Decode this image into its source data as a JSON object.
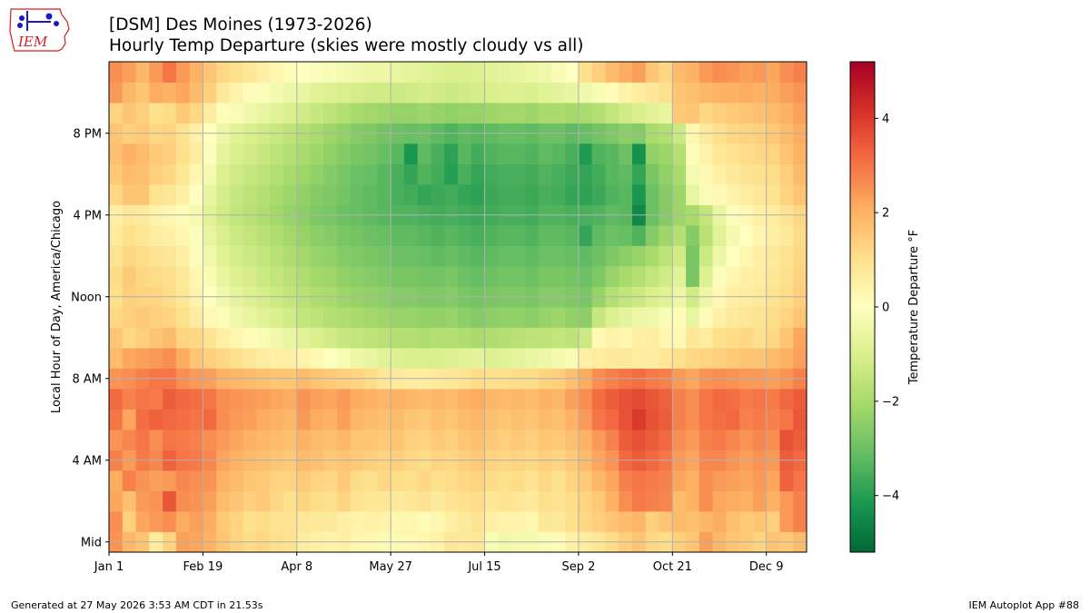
{
  "header": {
    "title_line1": "[DSM] Des Moines (1973-2026)",
    "title_line2": "Hourly Temp Departure (skies were mostly cloudy vs all)"
  },
  "logo": {
    "text": "IEM",
    "accent_color": "#cc2222",
    "icon_color": "#1a1acc"
  },
  "footer": {
    "left": "Generated at 27 May 2026 3:53 AM CDT in 21.53s",
    "right": "IEM Autoplot App #88"
  },
  "chart_data": {
    "type": "heatmap",
    "title": "[DSM] Des Moines (1973-2026)",
    "subtitle": "Hourly Temp Departure (skies were mostly cloudy vs all)",
    "xlabel": "",
    "ylabel": "Local Hour of Day, America/Chicago",
    "colorbar_label": "Temperature Departure °F",
    "colormap": "RdYlGn_r",
    "vmin": -5.2,
    "vmax": 5.2,
    "colorbar_ticks": [
      -4,
      -2,
      0,
      2,
      4
    ],
    "colorbar_tick_labels": [
      "−4",
      "−2",
      "0",
      "2",
      "4"
    ],
    "x_unit": "week of year",
    "x_bins": 52,
    "xlim": [
      0,
      52
    ],
    "x_ticks": [
      {
        "label": "Jan 1",
        "value": 0
      },
      {
        "label": "Feb 19",
        "value": 7
      },
      {
        "label": "Apr 8",
        "value": 14
      },
      {
        "label": "May 27",
        "value": 21
      },
      {
        "label": "Jul 15",
        "value": 28
      },
      {
        "label": "Sep 2",
        "value": 35
      },
      {
        "label": "Oct 21",
        "value": 42
      },
      {
        "label": "Dec 9",
        "value": 49
      }
    ],
    "y_unit": "hour of day",
    "ylim": [
      -0.5,
      23.5
    ],
    "y_ticks": [
      {
        "label": "Mid",
        "value": 0
      },
      {
        "label": "4 AM",
        "value": 4
      },
      {
        "label": "8 AM",
        "value": 8
      },
      {
        "label": "Noon",
        "value": 12
      },
      {
        "label": "4 PM",
        "value": 16
      },
      {
        "label": "8 PM",
        "value": 20
      }
    ],
    "grid": true,
    "values_by_hour": [
      [
        2.5,
        1.9,
        1.6,
        0.6,
        1.3,
        2.3,
        2.2,
        2.0,
        1.6,
        1.3,
        1.1,
        1.2,
        1.0,
        0.9,
        0.6,
        0.5,
        0.4,
        0.5,
        0.3,
        0.3,
        -0.2,
        -0.2,
        0.2,
        0.3,
        0.4,
        0.8,
        0.7,
        0.8,
        -0.2,
        -0.4,
        -0.3,
        -0.3,
        -0.2,
        0.1,
        0.5,
        0.6,
        0.8,
        1.1,
        1.4,
        1.6,
        1.2,
        1.1,
        1.4,
        1.6,
        2.3,
        1.9,
        1.6,
        1.5,
        1.3,
        1.6,
        1.5,
        1.8
      ],
      [
        2.6,
        1.4,
        2.2,
        2.4,
        2.6,
        2.1,
        2.3,
        2.1,
        1.5,
        1.3,
        1.0,
        1.1,
        0.9,
        0.9,
        0.8,
        0.7,
        0.7,
        0.5,
        0.4,
        0.5,
        0.4,
        0.3,
        0.3,
        0.1,
        0.3,
        0.5,
        0.7,
        0.9,
        0.5,
        0.4,
        0.4,
        0.3,
        0.8,
        0.7,
        1.0,
        1.2,
        1.4,
        1.6,
        1.8,
        1.9,
        1.4,
        1.6,
        1.8,
        1.7,
        1.9,
        2.1,
        1.7,
        1.5,
        1.6,
        1.4,
        2.4,
        2.8
      ],
      [
        2.2,
        1.7,
        2.4,
        2.5,
        3.5,
        2.6,
        2.5,
        2.3,
        1.8,
        1.6,
        1.4,
        1.5,
        1.2,
        1.0,
        1.3,
        1.1,
        1.0,
        1.3,
        0.9,
        0.8,
        0.8,
        0.7,
        0.8,
        0.9,
        0.7,
        0.9,
        1.0,
        1.1,
        0.8,
        0.9,
        0.8,
        0.7,
        1.0,
        0.9,
        1.1,
        1.3,
        1.5,
        2.0,
        2.6,
        2.9,
        2.8,
        2.7,
        1.8,
        2.0,
        2.6,
        2.2,
        2.1,
        2.0,
        2.3,
        2.0,
        2.4,
        2.8
      ],
      [
        2.1,
        2.8,
        2.5,
        2.3,
        2.4,
        2.7,
        2.6,
        2.5,
        2.0,
        1.8,
        1.6,
        1.5,
        1.3,
        1.3,
        1.5,
        1.3,
        1.2,
        1.5,
        1.1,
        1.0,
        1.2,
        1.1,
        1.0,
        1.2,
        1.0,
        1.1,
        1.2,
        1.3,
        1.1,
        1.0,
        1.1,
        0.9,
        1.2,
        1.0,
        1.3,
        1.5,
        1.9,
        2.2,
        2.8,
        3.0,
        2.9,
        2.8,
        2.2,
        2.0,
        2.6,
        2.4,
        2.3,
        2.2,
        2.4,
        2.2,
        3.3,
        3.0
      ],
      [
        2.8,
        2.4,
        2.9,
        2.7,
        3.3,
        3.0,
        2.9,
        2.7,
        2.2,
        2.0,
        1.8,
        1.7,
        1.6,
        1.5,
        1.8,
        1.7,
        1.5,
        1.6,
        1.5,
        1.4,
        1.3,
        1.4,
        1.2,
        1.1,
        1.3,
        1.2,
        1.4,
        1.5,
        1.3,
        1.2,
        1.3,
        1.2,
        1.4,
        1.3,
        1.5,
        1.8,
        2.2,
        2.5,
        3.2,
        3.4,
        3.2,
        3.0,
        2.4,
        2.2,
        2.7,
        2.7,
        2.5,
        2.3,
        2.5,
        2.4,
        3.4,
        3.2
      ],
      [
        2.5,
        2.7,
        3.0,
        2.6,
        3.0,
        2.9,
        2.8,
        2.6,
        2.4,
        2.2,
        2.0,
        1.9,
        1.8,
        1.7,
        2.0,
        1.8,
        1.7,
        1.9,
        1.6,
        1.6,
        1.5,
        1.6,
        1.4,
        1.3,
        1.5,
        1.4,
        1.6,
        1.7,
        1.5,
        1.4,
        1.5,
        1.4,
        1.6,
        1.5,
        1.7,
        2.0,
        2.4,
        2.8,
        3.4,
        3.6,
        3.4,
        3.2,
        2.6,
        2.4,
        2.8,
        2.9,
        2.7,
        2.5,
        2.7,
        2.6,
        3.6,
        3.4
      ],
      [
        3.0,
        2.2,
        3.1,
        3.3,
        3.2,
        3.1,
        3.0,
        3.2,
        2.6,
        2.4,
        2.3,
        2.1,
        2.0,
        1.9,
        2.4,
        2.1,
        2.0,
        2.3,
        1.9,
        1.8,
        1.7,
        1.8,
        1.6,
        1.5,
        1.7,
        1.6,
        1.8,
        1.9,
        1.7,
        1.6,
        1.7,
        1.6,
        1.8,
        1.7,
        2.0,
        2.4,
        3.0,
        3.2,
        3.6,
        4.0,
        3.6,
        3.4,
        2.8,
        2.6,
        3.0,
        3.1,
        3.2,
        2.8,
        2.9,
        2.8,
        3.0,
        3.5
      ],
      [
        3.2,
        2.8,
        3.0,
        2.9,
        3.4,
        3.2,
        3.1,
        3.0,
        2.6,
        2.5,
        2.4,
        2.3,
        2.2,
        2.1,
        2.5,
        2.3,
        2.2,
        2.4,
        2.1,
        2.0,
        1.9,
        2.0,
        1.9,
        1.8,
        1.9,
        1.8,
        2.0,
        2.1,
        1.9,
        1.8,
        1.9,
        1.8,
        2.0,
        1.9,
        2.3,
        2.6,
        3.1,
        3.4,
        3.6,
        3.7,
        3.5,
        3.3,
        2.8,
        2.6,
        3.0,
        3.2,
        3.1,
        2.9,
        3.0,
        2.9,
        3.2,
        3.4
      ],
      [
        2.5,
        2.6,
        2.8,
        3.0,
        3.0,
        2.6,
        2.4,
        2.3,
        2.0,
        1.9,
        1.8,
        1.7,
        1.6,
        1.6,
        1.8,
        1.6,
        1.5,
        1.4,
        1.3,
        1.1,
        0.8,
        0.7,
        0.6,
        0.6,
        0.7,
        0.8,
        0.9,
        1.1,
        1.0,
        1.0,
        1.1,
        1.1,
        1.3,
        1.4,
        1.7,
        2.1,
        2.6,
        2.8,
        3.0,
        3.1,
        2.9,
        2.8,
        2.4,
        2.2,
        2.5,
        2.6,
        2.5,
        2.4,
        2.4,
        2.3,
        2.5,
        2.8
      ],
      [
        1.8,
        2.2,
        2.3,
        2.4,
        2.6,
        2.1,
        1.6,
        1.4,
        1.2,
        1.0,
        0.8,
        0.6,
        0.5,
        0.5,
        0.4,
        0.2,
        0.0,
        -0.2,
        -0.5,
        -0.6,
        -0.8,
        -0.9,
        -1.0,
        -1.0,
        -1.0,
        -0.9,
        -0.8,
        -0.7,
        -0.9,
        -0.8,
        -0.7,
        -0.6,
        -0.5,
        -0.3,
        -0.2,
        0.5,
        0.6,
        0.7,
        0.7,
        0.6,
        0.6,
        0.8,
        1.0,
        1.2,
        1.3,
        1.4,
        1.5,
        1.6,
        1.6,
        1.8,
        2.0,
        2.3
      ],
      [
        1.6,
        1.2,
        1.4,
        1.6,
        1.8,
        1.3,
        1.2,
        0.9,
        0.5,
        0.3,
        0.1,
        -0.2,
        -0.4,
        -0.6,
        -0.8,
        -1.0,
        -1.2,
        -1.4,
        -1.5,
        -1.6,
        -1.7,
        -1.8,
        -1.8,
        -1.9,
        -1.8,
        -1.8,
        -1.9,
        -2.0,
        -1.9,
        -1.8,
        -1.7,
        -1.6,
        -1.6,
        -1.5,
        -1.6,
        -1.3,
        0.2,
        0.4,
        0.3,
        0.5,
        0.6,
        0.3,
        0.2,
        0.8,
        0.6,
        1.0,
        1.1,
        1.2,
        1.0,
        1.2,
        1.6,
        2.2
      ],
      [
        1.2,
        1.4,
        1.5,
        1.4,
        1.3,
        1.0,
        0.6,
        0.2,
        -0.1,
        -0.4,
        -0.6,
        -0.8,
        -1.0,
        -1.2,
        -1.5,
        -1.6,
        -1.8,
        -1.9,
        -2.0,
        -2.1,
        -2.2,
        -2.3,
        -2.3,
        -2.4,
        -2.4,
        -2.3,
        -2.5,
        -2.6,
        -2.5,
        -2.4,
        -2.4,
        -2.5,
        -2.3,
        -2.2,
        -2.4,
        -2.5,
        -1.4,
        -0.9,
        -0.7,
        -0.5,
        -0.4,
        -0.2,
        0.1,
        -0.6,
        0.1,
        0.5,
        0.7,
        0.8,
        0.9,
        1.1,
        1.3,
        1.6
      ],
      [
        1.0,
        1.4,
        1.3,
        1.3,
        1.1,
        0.8,
        0.4,
        0.0,
        -0.4,
        -0.7,
        -0.9,
        -1.1,
        -1.3,
        -1.5,
        -1.7,
        -1.9,
        -2.0,
        -2.2,
        -2.3,
        -2.4,
        -2.5,
        -2.6,
        -2.6,
        -2.7,
        -2.7,
        -2.6,
        -2.8,
        -2.9,
        -2.8,
        -2.7,
        -2.7,
        -2.8,
        -2.6,
        -2.6,
        -2.7,
        -2.8,
        -2.3,
        -1.8,
        -1.5,
        -1.3,
        -1.0,
        -0.8,
        -0.5,
        -1.2,
        -0.5,
        0.2,
        0.5,
        0.6,
        0.7,
        0.9,
        1.1,
        1.4
      ],
      [
        1.1,
        1.5,
        1.2,
        1.1,
        1.0,
        0.7,
        0.3,
        -0.2,
        -0.6,
        -0.9,
        -1.1,
        -1.3,
        -1.5,
        -1.7,
        -1.9,
        -2.1,
        -2.2,
        -2.4,
        -2.5,
        -2.6,
        -2.7,
        -2.8,
        -2.8,
        -2.9,
        -2.9,
        -2.8,
        -3.0,
        -3.1,
        -3.0,
        -2.9,
        -2.9,
        -3.0,
        -2.8,
        -2.8,
        -2.9,
        -3.0,
        -2.7,
        -2.3,
        -2.0,
        -1.8,
        -1.5,
        -1.2,
        -0.8,
        -2.8,
        -0.9,
        -0.1,
        0.3,
        0.5,
        0.6,
        0.8,
        1.0,
        1.3
      ],
      [
        0.9,
        1.2,
        1.1,
        0.9,
        0.8,
        0.5,
        0.1,
        -0.4,
        -0.8,
        -1.1,
        -1.3,
        -1.5,
        -1.7,
        -1.9,
        -2.1,
        -2.3,
        -2.4,
        -2.6,
        -2.7,
        -2.8,
        -2.9,
        -3.0,
        -3.0,
        -3.1,
        -3.2,
        -3.1,
        -3.2,
        -3.3,
        -3.2,
        -3.1,
        -3.1,
        -3.2,
        -3.0,
        -3.0,
        -3.1,
        -3.2,
        -3.0,
        -2.7,
        -2.5,
        -2.3,
        -2.0,
        -1.6,
        -1.2,
        -2.8,
        -1.3,
        -0.5,
        0.0,
        0.3,
        0.5,
        0.7,
        0.9,
        1.2
      ],
      [
        0.7,
        1.0,
        0.8,
        0.6,
        0.5,
        0.3,
        -0.1,
        -0.6,
        -1.0,
        -1.3,
        -1.5,
        -1.7,
        -1.9,
        -2.1,
        -2.3,
        -2.5,
        -2.6,
        -2.8,
        -2.9,
        -3.0,
        -3.1,
        -3.2,
        -3.2,
        -3.3,
        -3.4,
        -3.3,
        -3.4,
        -3.5,
        -3.4,
        -3.3,
        -3.3,
        -3.4,
        -3.2,
        -3.2,
        -3.3,
        -3.8,
        -3.2,
        -3.0,
        -3.1,
        -3.4,
        -2.6,
        -2.2,
        -1.8,
        -2.6,
        -1.7,
        -0.8,
        -0.3,
        0.0,
        0.3,
        0.5,
        0.7,
        1.1
      ],
      [
        0.5,
        0.8,
        0.7,
        0.4,
        0.3,
        0.1,
        -0.3,
        -0.8,
        -1.2,
        -1.5,
        -1.7,
        -1.9,
        -2.1,
        -2.3,
        -2.5,
        -2.7,
        -2.8,
        -3.0,
        -3.1,
        -3.2,
        -3.3,
        -3.4,
        -3.4,
        -3.5,
        -3.6,
        -3.5,
        -3.6,
        -3.7,
        -3.6,
        -3.5,
        -3.5,
        -3.6,
        -3.4,
        -3.4,
        -3.5,
        -3.5,
        -3.4,
        -3.2,
        -3.3,
        -4.5,
        -3.0,
        -2.6,
        -2.2,
        -2.0,
        -1.5,
        -0.6,
        -0.1,
        0.2,
        0.5,
        0.6,
        0.9,
        1.2
      ],
      [
        1.2,
        1.6,
        1.6,
        0.9,
        0.8,
        0.5,
        0.0,
        -0.6,
        -1.1,
        -1.4,
        -1.6,
        -1.8,
        -2.0,
        -2.2,
        -2.4,
        -2.6,
        -2.7,
        -2.9,
        -3.1,
        -3.2,
        -3.3,
        -3.5,
        -3.6,
        -3.8,
        -3.7,
        -3.6,
        -3.8,
        -3.9,
        -3.7,
        -3.6,
        -3.6,
        -3.7,
        -3.5,
        -3.6,
        -3.8,
        -3.9,
        -3.7,
        -3.4,
        -3.3,
        -4.2,
        -3.0,
        -2.6,
        -2.2,
        -0.6,
        -0.2,
        0.2,
        0.4,
        0.6,
        0.8,
        0.9,
        1.3,
        1.6
      ],
      [
        1.5,
        1.8,
        1.7,
        1.4,
        1.2,
        0.8,
        0.3,
        -0.3,
        -0.9,
        -1.2,
        -1.4,
        -1.6,
        -1.8,
        -2.0,
        -2.2,
        -2.4,
        -2.6,
        -2.8,
        -3.0,
        -3.1,
        -3.3,
        -3.5,
        -3.8,
        -3.4,
        -3.6,
        -4.0,
        -3.5,
        -3.8,
        -3.6,
        -3.5,
        -3.5,
        -3.6,
        -3.4,
        -3.5,
        -3.7,
        -3.8,
        -3.6,
        -3.3,
        -3.2,
        -3.8,
        -2.8,
        -2.4,
        -2.0,
        -0.3,
        0.2,
        0.5,
        0.7,
        0.9,
        1.0,
        1.1,
        1.4,
        1.8
      ],
      [
        1.7,
        2.0,
        1.8,
        1.5,
        1.4,
        1.0,
        0.6,
        -0.1,
        -0.7,
        -1.0,
        -1.2,
        -1.4,
        -1.6,
        -1.8,
        -2.0,
        -2.2,
        -2.4,
        -2.6,
        -2.8,
        -2.9,
        -3.1,
        -3.3,
        -4.2,
        -3.2,
        -3.5,
        -3.9,
        -3.3,
        -3.6,
        -3.4,
        -3.3,
        -3.3,
        -3.4,
        -3.2,
        -3.3,
        -3.5,
        -4.1,
        -3.4,
        -3.3,
        -3.0,
        -4.3,
        -2.4,
        -2.2,
        -1.8,
        0.1,
        0.4,
        0.8,
        0.9,
        1.1,
        1.2,
        1.3,
        1.6,
        2.0
      ],
      [
        1.6,
        1.4,
        1.5,
        1.2,
        1.3,
        0.9,
        0.5,
        0.0,
        -0.5,
        -0.8,
        -1.0,
        -1.2,
        -1.4,
        -1.6,
        -1.8,
        -2.0,
        -2.2,
        -2.4,
        -2.6,
        -2.7,
        -2.9,
        -3.0,
        -3.1,
        -3.0,
        -3.2,
        -3.4,
        -3.2,
        -3.3,
        -3.2,
        -3.1,
        -3.1,
        -3.2,
        -3.0,
        -3.0,
        -3.2,
        -3.1,
        -2.9,
        -2.7,
        -2.5,
        -2.6,
        -2.0,
        -1.8,
        -1.3,
        0.3,
        0.7,
        1.0,
        1.2,
        1.3,
        1.4,
        1.5,
        1.8,
        2.1
      ],
      [
        1.3,
        1.6,
        1.4,
        1.0,
        1.1,
        1.5,
        1.2,
        0.6,
        0.1,
        -0.2,
        -0.4,
        -0.6,
        -0.8,
        -1.0,
        -1.2,
        -1.4,
        -1.6,
        -1.8,
        -2.0,
        -2.1,
        -2.2,
        -2.3,
        -2.3,
        -2.2,
        -2.3,
        -2.4,
        -2.3,
        -2.3,
        -2.2,
        -2.1,
        -2.1,
        -2.2,
        -2.0,
        -2.0,
        -2.1,
        -2.0,
        -1.8,
        -1.5,
        -1.2,
        -1.0,
        -0.8,
        -0.6,
        1.5,
        1.6,
        1.2,
        1.4,
        1.5,
        1.6,
        1.7,
        1.8,
        2.0,
        2.3
      ],
      [
        2.4,
        1.9,
        1.6,
        2.1,
        2.0,
        2.2,
        1.8,
        1.4,
        0.7,
        0.4,
        0.1,
        -0.1,
        -0.3,
        -0.5,
        -0.6,
        -0.8,
        -0.9,
        -1.0,
        -1.1,
        -1.2,
        -1.2,
        -1.3,
        -1.2,
        -1.1,
        -1.2,
        -1.3,
        -1.2,
        -1.1,
        -1.0,
        -0.9,
        -0.9,
        -1.0,
        -0.8,
        -0.7,
        -0.6,
        -0.4,
        -0.2,
        0.1,
        0.4,
        0.6,
        0.8,
        1.0,
        1.6,
        1.7,
        1.9,
        2.0,
        2.0,
        2.1,
        2.0,
        2.1,
        2.3,
        2.5
      ],
      [
        2.6,
        2.3,
        1.9,
        2.4,
        3.0,
        2.4,
        2.0,
        1.6,
        1.2,
        1.0,
        0.8,
        0.5,
        0.3,
        0.1,
        0.0,
        -0.1,
        -0.2,
        -0.3,
        -0.4,
        -0.5,
        -0.5,
        -0.6,
        -0.7,
        -0.8,
        -0.9,
        -1.0,
        -1.0,
        -0.9,
        -0.8,
        -0.7,
        -0.6,
        -0.5,
        -0.4,
        -0.2,
        0.0,
        1.0,
        1.4,
        1.8,
        2.1,
        2.3,
        1.6,
        1.2,
        1.8,
        2.0,
        2.4,
        2.6,
        2.5,
        2.3,
        2.4,
        2.2,
        2.6,
        2.8
      ]
    ]
  }
}
